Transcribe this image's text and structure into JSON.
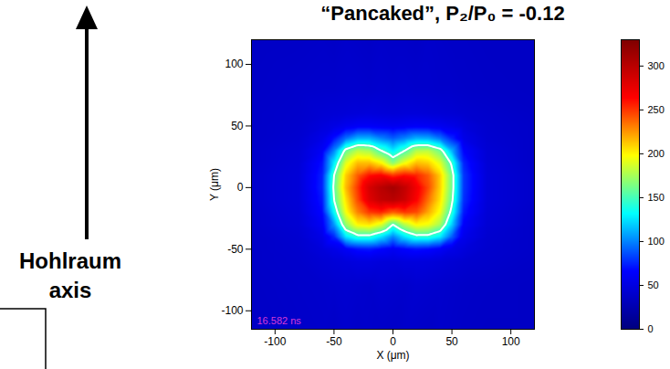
{
  "chart_data": {
    "type": "heatmap",
    "title": "“Pancaked”, P₂/P₀ = -0.12",
    "x_label": "X (μm)",
    "y_label": "Y (μm)",
    "xlim": [
      -120,
      120
    ],
    "ylim": [
      -115,
      120
    ],
    "xticks": [
      -100,
      -50,
      0,
      50,
      100
    ],
    "yticks": [
      -100,
      -50,
      0,
      50,
      100
    ],
    "grid": false,
    "x": [
      -120,
      -80,
      -60,
      -50,
      -40,
      -30,
      -20,
      -10,
      0,
      10,
      20,
      30,
      40,
      50,
      60,
      80,
      120
    ],
    "y": [
      -120,
      -80,
      -60,
      -50,
      -40,
      -30,
      -20,
      -10,
      0,
      10,
      20,
      30,
      40,
      50,
      60,
      80,
      120
    ],
    "z": [
      [
        36,
        38,
        39,
        37,
        40,
        38,
        39,
        38,
        37,
        39,
        38,
        37,
        39,
        38,
        37,
        36,
        36
      ],
      [
        37,
        39,
        40,
        41,
        42,
        41,
        40,
        42,
        41,
        40,
        42,
        41,
        40,
        39,
        38,
        37,
        36
      ],
      [
        38,
        40,
        44,
        46,
        48,
        50,
        50,
        48,
        47,
        49,
        49,
        48,
        46,
        44,
        42,
        40,
        37
      ],
      [
        38,
        41,
        48,
        54,
        62,
        70,
        72,
        66,
        60,
        66,
        70,
        68,
        62,
        54,
        48,
        41,
        38
      ],
      [
        38,
        42,
        54,
        75,
        125,
        142,
        142,
        125,
        100,
        125,
        142,
        142,
        128,
        90,
        56,
        42,
        38
      ],
      [
        39,
        44,
        62,
        105,
        170,
        200,
        205,
        190,
        150,
        180,
        200,
        195,
        175,
        120,
        64,
        44,
        38
      ],
      [
        39,
        45,
        68,
        132,
        195,
        230,
        250,
        255,
        240,
        250,
        245,
        220,
        195,
        142,
        72,
        45,
        38
      ],
      [
        40,
        46,
        72,
        150,
        205,
        245,
        280,
        295,
        300,
        290,
        265,
        235,
        205,
        155,
        78,
        46,
        39
      ],
      [
        40,
        46,
        75,
        155,
        215,
        250,
        285,
        300,
        310,
        295,
        270,
        245,
        210,
        160,
        80,
        46,
        39
      ],
      [
        40,
        46,
        74,
        150,
        210,
        240,
        260,
        265,
        250,
        260,
        255,
        240,
        210,
        160,
        80,
        46,
        39
      ],
      [
        39,
        45,
        70,
        128,
        190,
        215,
        215,
        200,
        168,
        195,
        215,
        210,
        190,
        145,
        75,
        45,
        38
      ],
      [
        39,
        44,
        62,
        100,
        158,
        180,
        175,
        150,
        128,
        150,
        178,
        180,
        160,
        112,
        66,
        44,
        38
      ],
      [
        38,
        42,
        54,
        70,
        95,
        112,
        112,
        100,
        90,
        100,
        112,
        110,
        96,
        75,
        54,
        42,
        38
      ],
      [
        38,
        41,
        48,
        52,
        58,
        62,
        62,
        60,
        58,
        60,
        62,
        61,
        58,
        54,
        48,
        41,
        38
      ],
      [
        38,
        40,
        44,
        45,
        46,
        47,
        48,
        47,
        46,
        47,
        47,
        46,
        45,
        44,
        42,
        40,
        37
      ],
      [
        37,
        39,
        40,
        40,
        41,
        41,
        40,
        41,
        40,
        41,
        40,
        40,
        39,
        39,
        38,
        37,
        36
      ],
      [
        36,
        37,
        38,
        37,
        39,
        38,
        37,
        39,
        38,
        38,
        37,
        39,
        38,
        37,
        37,
        36,
        36
      ]
    ],
    "contour_level": 150,
    "colorbar_range": [
      0,
      330
    ],
    "colorbar_ticks": [
      0,
      50,
      100,
      150,
      200,
      250,
      300
    ],
    "annotations": [
      "16.582 ns",
      "Hohlraum axis"
    ]
  }
}
